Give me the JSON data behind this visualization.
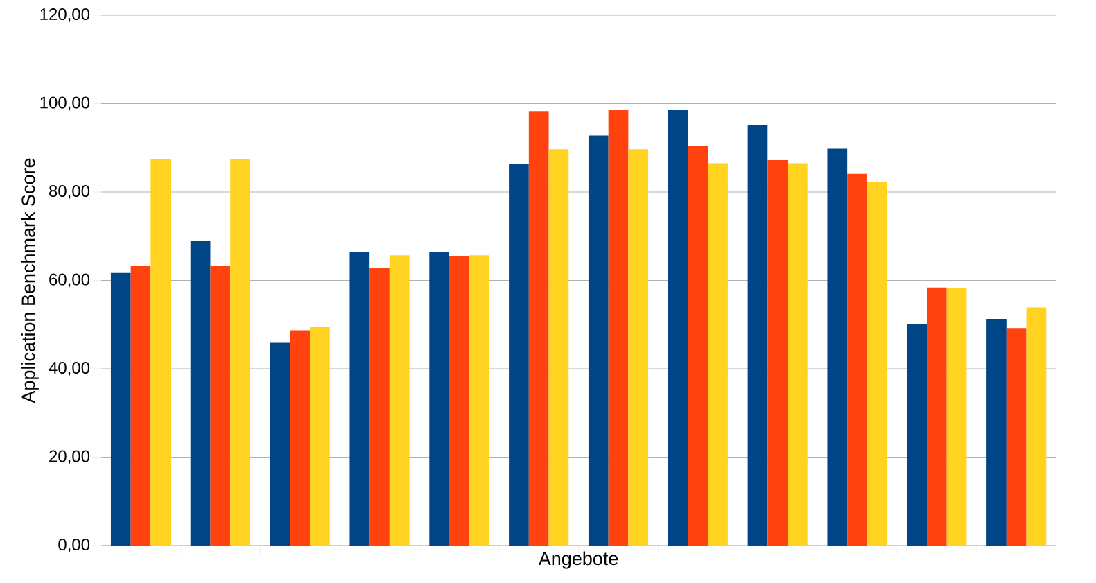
{
  "chart_data": {
    "type": "bar",
    "xlabel": "Angebote",
    "ylabel": "Application Benchmark Score",
    "categories": [
      null,
      null,
      null,
      null,
      null,
      null,
      null,
      null,
      null,
      null,
      null,
      null
    ],
    "series": [
      {
        "color": "#004586",
        "values": [
          61.7,
          68.9,
          45.9,
          66.4,
          66.4,
          86.4,
          92.8,
          98.5,
          95.1,
          89.8,
          50.1,
          51.3
        ]
      },
      {
        "color": "#ff420e",
        "values": [
          63.3,
          63.3,
          48.7,
          62.8,
          65.4,
          98.3,
          98.5,
          90.4,
          87.2,
          84.1,
          58.4,
          49.2
        ]
      },
      {
        "color": "#ffd320",
        "values": [
          87.5,
          87.5,
          49.4,
          65.7,
          65.7,
          89.7,
          89.7,
          86.5,
          86.5,
          82.2,
          58.3,
          53.9
        ]
      }
    ],
    "ylim": [
      0,
      120
    ],
    "yticks": [
      {
        "value": 0,
        "label": "0,00"
      },
      {
        "value": 20,
        "label": "20,00"
      },
      {
        "value": 40,
        "label": "40,00"
      },
      {
        "value": 60,
        "label": "60,00"
      },
      {
        "value": 80,
        "label": "80,00"
      },
      {
        "value": 100,
        "label": "100,00"
      },
      {
        "value": 120,
        "label": "120,00"
      }
    ],
    "grid": "y"
  }
}
